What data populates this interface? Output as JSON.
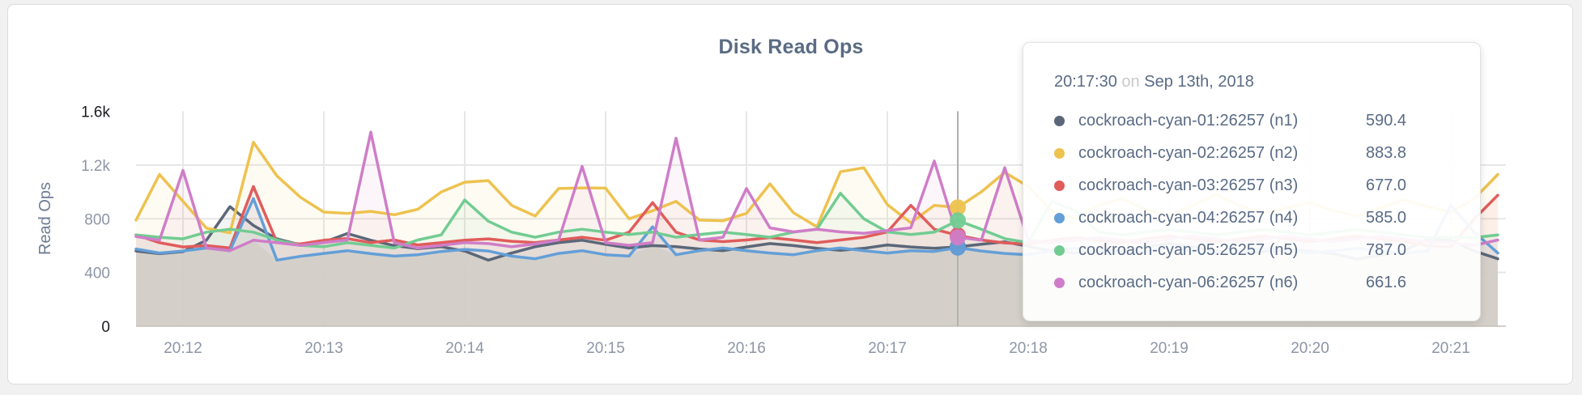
{
  "panel": {
    "title": "Disk Read Ops"
  },
  "axes": {
    "y_title": "Read Ops",
    "y_tick_labels": [
      "0",
      "400",
      "800",
      "1.2k",
      "1.6k"
    ],
    "y_tick_values": [
      0,
      400,
      800,
      1200,
      1600
    ],
    "x_tick_labels": [
      "20:12",
      "20:13",
      "20:14",
      "20:15",
      "20:16",
      "20:17",
      "20:18",
      "20:19",
      "20:20",
      "20:21"
    ]
  },
  "tooltip": {
    "time": "20:17:30",
    "conjunction": "on",
    "date": "Sep 13th, 2018",
    "rows": [
      {
        "label": "cockroach-cyan-01:26257 (n1)",
        "value": "590.4",
        "color": "#5b6779"
      },
      {
        "label": "cockroach-cyan-02:26257 (n2)",
        "value": "883.8",
        "color": "#edc24f"
      },
      {
        "label": "cockroach-cyan-03:26257 (n3)",
        "value": "677.0",
        "color": "#e05c5b"
      },
      {
        "label": "cockroach-cyan-04:26257 (n4)",
        "value": "585.0",
        "color": "#649fd8"
      },
      {
        "label": "cockroach-cyan-05:26257 (n5)",
        "value": "787.0",
        "color": "#72cc92"
      },
      {
        "label": "cockroach-cyan-06:26257 (n6)",
        "value": "661.6",
        "color": "#cf7dc8"
      }
    ]
  },
  "chart_data": {
    "type": "line",
    "title": "Disk Read Ops",
    "ylabel": "Read Ops",
    "ylim": [
      0,
      1600
    ],
    "grid": true,
    "legend_position": "tooltip-only",
    "sample_interval_seconds": 10,
    "x_range": [
      "20:11:40",
      "20:21:20"
    ],
    "x_tick_labels": [
      "20:12",
      "20:13",
      "20:14",
      "20:15",
      "20:16",
      "20:17",
      "20:18",
      "20:19",
      "20:20",
      "20:21"
    ],
    "y_tick_labels": [
      "0",
      "400",
      "800",
      "1.2k",
      "1.6k"
    ],
    "y_tick_values": [
      0,
      400,
      800,
      1200,
      1600
    ],
    "hover": {
      "index": 35,
      "time": "20:17:30",
      "date": "Sep 13th, 2018"
    },
    "series": [
      {
        "name": "cockroach-cyan-01:26257 (n1)",
        "color": "#5b6779",
        "values": [
          560,
          540,
          555,
          640,
          890,
          750,
          650,
          605,
          625,
          690,
          640,
          600,
          578,
          592,
          560,
          492,
          545,
          592,
          622,
          640,
          610,
          582,
          600,
          592,
          575,
          562,
          590,
          615,
          600,
          580,
          565,
          580,
          605,
          590,
          580,
          590.4,
          610,
          628,
          595,
          560,
          545,
          570,
          560,
          590,
          615,
          590,
          560,
          540,
          555,
          570,
          560,
          540,
          500,
          530,
          560,
          648,
          640,
          560,
          502
        ]
      },
      {
        "name": "cockroach-cyan-02:26257 (n2)",
        "color": "#edc24f",
        "values": [
          790,
          1130,
          930,
          730,
          695,
          1370,
          1120,
          960,
          850,
          840,
          855,
          830,
          870,
          1000,
          1072,
          1084,
          900,
          820,
          1025,
          1030,
          1028,
          800,
          860,
          930,
          790,
          785,
          840,
          1060,
          845,
          740,
          1150,
          1180,
          905,
          770,
          900,
          883.8,
          1000,
          1145,
          1040,
          860,
          800,
          900,
          950,
          870,
          820,
          900,
          980,
          900,
          840,
          880,
          920,
          860,
          820,
          880,
          940,
          890,
          850,
          950,
          1130
        ]
      },
      {
        "name": "cockroach-cyan-03:26257 (n3)",
        "color": "#e05c5b",
        "values": [
          680,
          622,
          590,
          600,
          582,
          1040,
          625,
          612,
          640,
          652,
          622,
          642,
          605,
          622,
          640,
          650,
          632,
          622,
          642,
          662,
          640,
          700,
          920,
          700,
          642,
          630,
          642,
          660,
          642,
          622,
          642,
          662,
          702,
          900,
          722,
          677.0,
          642,
          620,
          612,
          640,
          660,
          640,
          620,
          650,
          670,
          650,
          630,
          650,
          670,
          650,
          630,
          650,
          670,
          650,
          630,
          600,
          590,
          800,
          975
        ]
      },
      {
        "name": "cockroach-cyan-04:26257 (n4)",
        "color": "#649fd8",
        "values": [
          575,
          545,
          560,
          582,
          562,
          950,
          492,
          520,
          542,
          562,
          540,
          522,
          532,
          556,
          572,
          560,
          522,
          502,
          542,
          562,
          532,
          522,
          740,
          532,
          562,
          582,
          562,
          545,
          532,
          562,
          582,
          562,
          545,
          562,
          556,
          585.0,
          560,
          542,
          532,
          560,
          580,
          560,
          540,
          560,
          580,
          560,
          540,
          560,
          580,
          560,
          545,
          560,
          580,
          560,
          545,
          560,
          900,
          700,
          545
        ]
      },
      {
        "name": "cockroach-cyan-05:26257 (n5)",
        "color": "#72cc92",
        "values": [
          680,
          662,
          650,
          700,
          722,
          700,
          642,
          602,
          592,
          622,
          602,
          582,
          642,
          680,
          940,
          782,
          700,
          662,
          700,
          722,
          700,
          682,
          700,
          662,
          682,
          700,
          682,
          662,
          700,
          722,
          990,
          800,
          702,
          682,
          700,
          787.0,
          722,
          652,
          622,
          930,
          860,
          700,
          680,
          700,
          720,
          700,
          680,
          700,
          720,
          700,
          680,
          700,
          720,
          700,
          680,
          660,
          662,
          660,
          680
        ]
      },
      {
        "name": "cockroach-cyan-06:26257 (n6)",
        "color": "#cf7dc8",
        "values": [
          668,
          640,
          1160,
          582,
          562,
          640,
          622,
          602,
          622,
          642,
          1445,
          622,
          582,
          602,
          622,
          615,
          592,
          612,
          642,
          1190,
          622,
          602,
          622,
          1400,
          642,
          662,
          1025,
          732,
          702,
          722,
          702,
          692,
          712,
          732,
          1230,
          661.6,
          640,
          1180,
          642,
          620,
          640,
          660,
          640,
          620,
          650,
          670,
          650,
          630,
          650,
          670,
          650,
          630,
          650,
          670,
          650,
          630,
          622,
          602,
          642
        ]
      }
    ]
  },
  "style": {
    "grid_color": "#e7e7e7",
    "baseline_color": "#c3bfb7",
    "hover_line_color": "#b0b0b0",
    "min_envelope_color": "#d3cfc8",
    "tick_color": "#8d95a5",
    "tick_maxmin_color": "#1b1d21",
    "axis_title_color": "#6d7b92"
  }
}
